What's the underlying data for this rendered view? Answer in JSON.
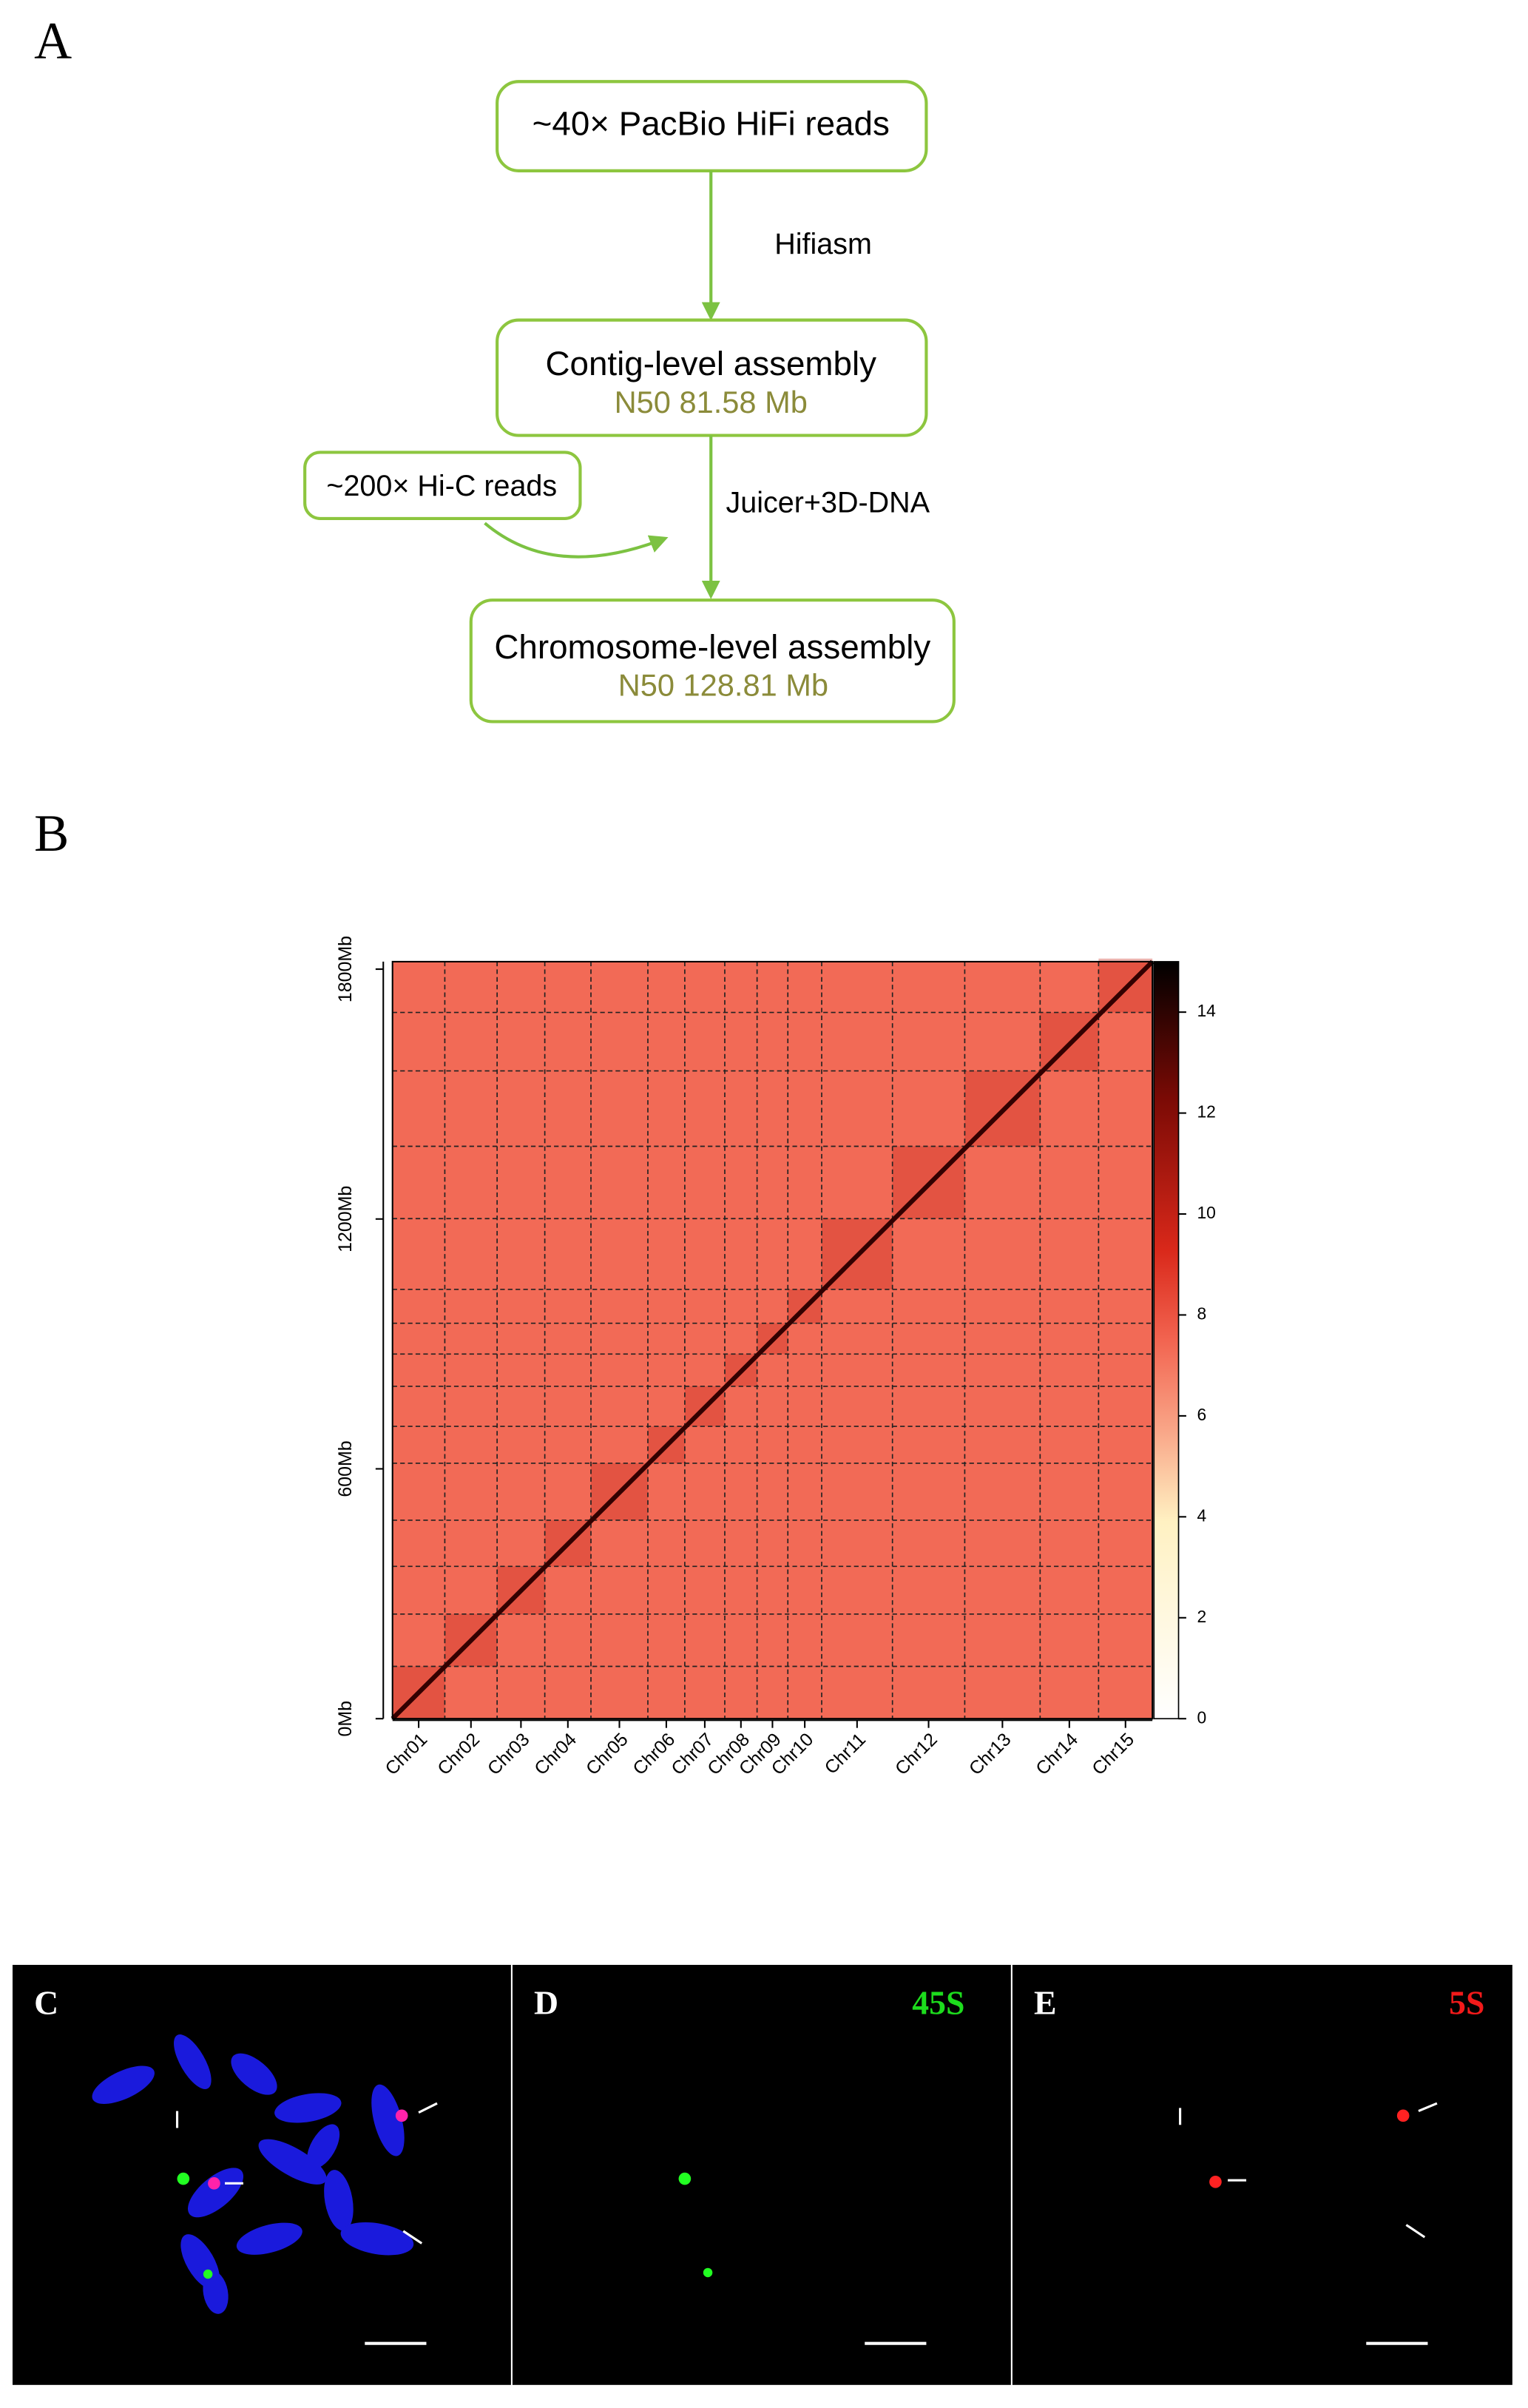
{
  "panel_labels": [
    "A",
    "B",
    "C",
    "D",
    "E"
  ],
  "flowchart": {
    "nodes": [
      {
        "label": "~40× PacBio HiFi reads"
      },
      {
        "label": "Contig-level assembly",
        "detail": "N50 81.58 Mb"
      },
      {
        "label": "~200× Hi-C reads"
      },
      {
        "label": "Chromosome-level assembly",
        "detail": "N50 128.81 Mb"
      }
    ],
    "edges": [
      {
        "label": "Hifiasm"
      },
      {
        "label": "Juicer+3D-DNA"
      }
    ]
  },
  "heatmap": {
    "chromosomes": [
      "Chr01",
      "Chr02",
      "Chr03",
      "Chr04",
      "Chr05",
      "Chr06",
      "Chr07",
      "Chr08",
      "Chr09",
      "Chr10",
      "Chr11",
      "Chr12",
      "Chr13",
      "Chr14",
      "Chr15"
    ],
    "ylim": [
      0,
      1818
    ],
    "yticks": [
      {
        "value": 0,
        "label": "0Mb"
      },
      {
        "value": 600,
        "label": "600Mb"
      },
      {
        "value": 1200,
        "label": "1200Mb"
      },
      {
        "value": 1800,
        "label": "1800Mb"
      }
    ],
    "colorbar": {
      "lim": [
        0,
        15
      ],
      "ticks": [
        0,
        2,
        4,
        6,
        8,
        10,
        12,
        14
      ]
    }
  },
  "fish": {
    "probes": [
      "45S",
      "5S"
    ]
  }
}
